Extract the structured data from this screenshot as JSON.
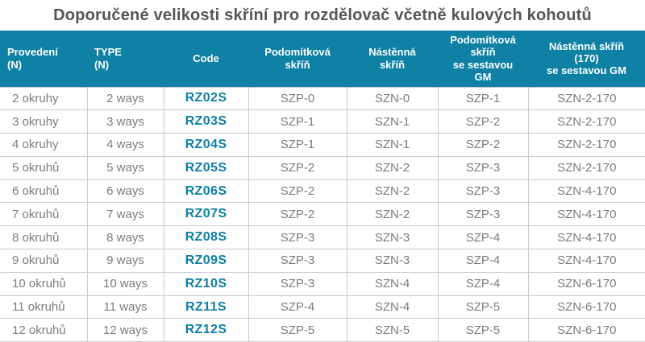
{
  "title": "Doporučené velikosti skříní pro rozdělovač včetně kulových kohoutů",
  "colors": {
    "header_bg": "#0e81a5",
    "code_text": "#0e7fa9",
    "row_text": "#7a7c7f",
    "border": "#c9cbcd",
    "title_text": "#55565a"
  },
  "table": {
    "columns": [
      {
        "key": "provedeni",
        "label": "Provedení\n(N)"
      },
      {
        "key": "type",
        "label": "TYPE\n(N)"
      },
      {
        "key": "code",
        "label": "Code"
      },
      {
        "key": "podomitkova-skrin",
        "label": "Podomítková\nskříň"
      },
      {
        "key": "nastenna-skrin",
        "label": "Nástěnná\nskříň"
      },
      {
        "key": "podomitkova-skrin-se-sestavou-gm",
        "label": "Podomítková\nskříň\nse sestavou\nGM"
      },
      {
        "key": "nastenna-skrin-170-se-sestavou-gm",
        "label": "Nástěnná skříň\n(170)\nse sestavou GM"
      }
    ],
    "rows": [
      [
        "2 okruhy",
        "2 ways",
        "RZ02S",
        "SZP-0",
        "SZN-0",
        "SZP-1",
        "SZN-2-170"
      ],
      [
        "3 okruhy",
        "3 ways",
        "RZ03S",
        "SZP-1",
        "SZN-1",
        "SZP-2",
        "SZN-2-170"
      ],
      [
        "4 okruhy",
        "4 ways",
        "RZ04S",
        "SZP-1",
        "SZN-1",
        "SZP-2",
        "SZN-2-170"
      ],
      [
        "5 okruhů",
        "5 ways",
        "RZ05S",
        "SZP-2",
        "SZN-2",
        "SZP-3",
        "SZN-2-170"
      ],
      [
        "6 okruhů",
        "6 ways",
        "RZ06S",
        "SZP-2",
        "SZN-2",
        "SZP-3",
        "SZN-4-170"
      ],
      [
        "7 okruhů",
        "7 ways",
        "RZ07S",
        "SZP-2",
        "SZN-2",
        "SZP-3",
        "SZN-4-170"
      ],
      [
        "8 okruhů",
        "8 ways",
        "RZ08S",
        "SZP-3",
        "SZN-3",
        "SZP-4",
        "SZN-4-170"
      ],
      [
        "9 okruhů",
        "9 ways",
        "RZ09S",
        "SZP-3",
        "SZN-3",
        "SZP-4",
        "SZN-4-170"
      ],
      [
        "10 okruhů",
        "10 ways",
        "RZ10S",
        "SZP-3",
        "SZN-4",
        "SZP-4",
        "SZN-6-170"
      ],
      [
        "11 okruhů",
        "11 ways",
        "RZ11S",
        "SZP-4",
        "SZN-4",
        "SZP-5",
        "SZN-6-170"
      ],
      [
        "12 okruhů",
        "12 ways",
        "RZ12S",
        "SZP-5",
        "SZN-5",
        "SZP-5",
        "SZN-6-170"
      ]
    ]
  }
}
